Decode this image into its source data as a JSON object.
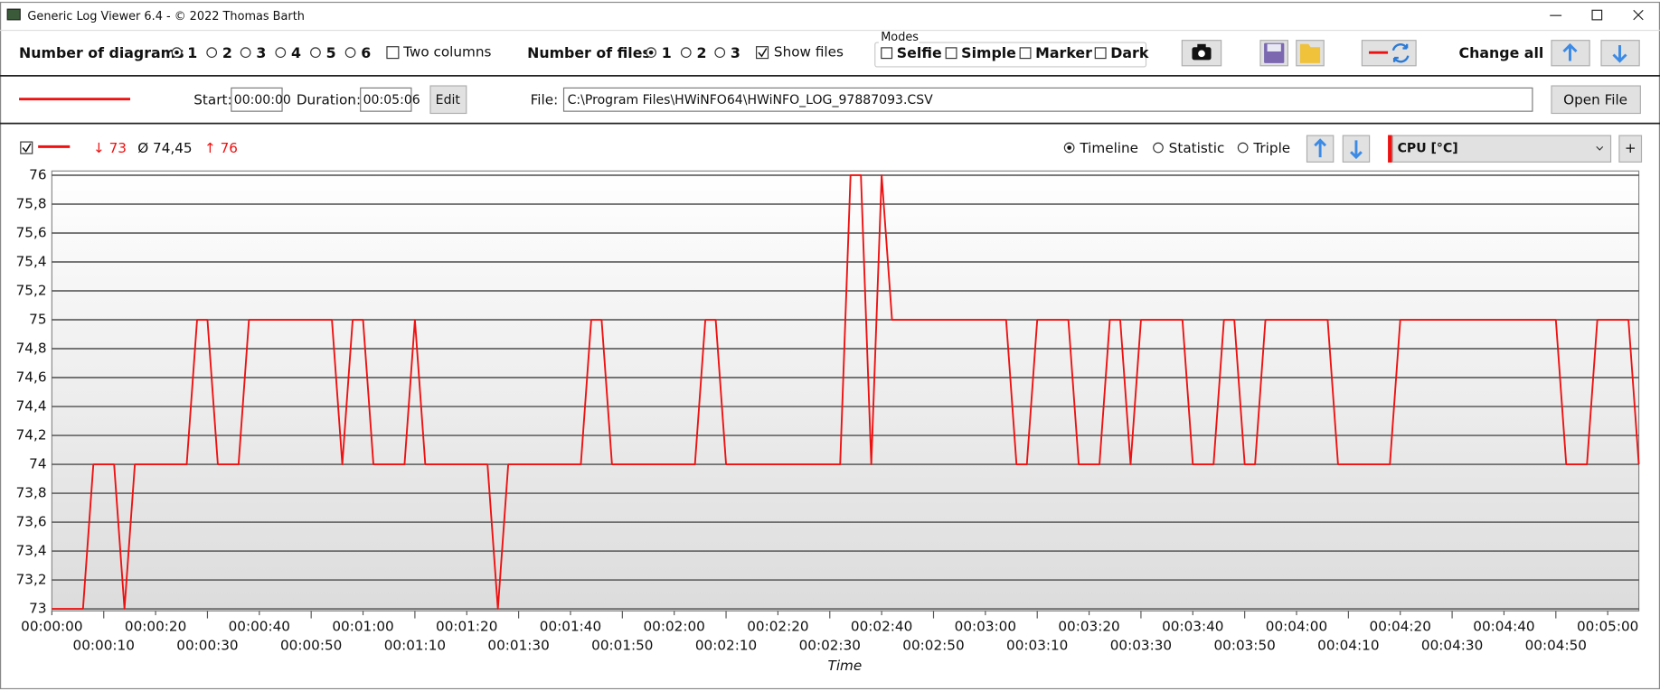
{
  "window": {
    "title": "Generic Log Viewer 6.4 - © 2022 Thomas Barth"
  },
  "toolbar": {
    "diagrams_label": "Number of diagrams",
    "diagram_options": [
      "1",
      "2",
      "3",
      "4",
      "5",
      "6"
    ],
    "two_columns": "Two columns",
    "files_label": "Number of files",
    "file_options": [
      "1",
      "2",
      "3"
    ],
    "show_files": "Show files",
    "modes_label": "Modes",
    "modes": [
      "Selfie",
      "Simple",
      "Marker",
      "Dark"
    ],
    "change_all": "Change all"
  },
  "file_bar": {
    "start_label": "Start:",
    "start": "00:00:00",
    "duration_label": "Duration:",
    "duration": "00:05:06",
    "edit": "Edit",
    "file_label": "File:",
    "file_path": "C:\\Program Files\\HWiNFO64\\HWiNFO_LOG_97887093.CSV",
    "open_file": "Open File"
  },
  "chart_header": {
    "min": "↓ 73",
    "avg": "Ø 74,45",
    "max": "↑ 76",
    "views": [
      "Timeline",
      "Statistic",
      "Triple"
    ],
    "add": "+"
  },
  "chart_data": {
    "type": "line",
    "x_label": "Time",
    "x": [
      0,
      6,
      8,
      12,
      14,
      16,
      26,
      28,
      30,
      32,
      36,
      38,
      54,
      56,
      58,
      60,
      62,
      68,
      70,
      72,
      84,
      86,
      88,
      102,
      104,
      106,
      108,
      124,
      126,
      128,
      130,
      152,
      154,
      156,
      158,
      160,
      162,
      184,
      186,
      188,
      190,
      196,
      198,
      202,
      204,
      206,
      208,
      210,
      218,
      220,
      224,
      226,
      228,
      230,
      232,
      234,
      246,
      248,
      258,
      260,
      290,
      292,
      296,
      298,
      304,
      306
    ],
    "series": [
      {
        "name": "CPU [°C]",
        "color": "#ee1111",
        "values": [
          73,
          73,
          74,
          74,
          73,
          74,
          74,
          75,
          75,
          74,
          74,
          75,
          75,
          74,
          75,
          75,
          74,
          74,
          75,
          74,
          74,
          73,
          74,
          74,
          75,
          75,
          74,
          74,
          75,
          75,
          74,
          74,
          76,
          76,
          74,
          76,
          75,
          75,
          74,
          74,
          75,
          75,
          74,
          74,
          75,
          75,
          74,
          75,
          75,
          74,
          74,
          75,
          75,
          74,
          74,
          75,
          75,
          74,
          74,
          75,
          75,
          74,
          74,
          75,
          75,
          74
        ]
      }
    ],
    "xlim": [
      0,
      306
    ],
    "xticks": [
      {
        "value": 0,
        "label": "00:00:00"
      },
      {
        "value": 10,
        "label": "00:00:10"
      },
      {
        "value": 20,
        "label": "00:00:20"
      },
      {
        "value": 30,
        "label": "00:00:30"
      },
      {
        "value": 40,
        "label": "00:00:40"
      },
      {
        "value": 50,
        "label": "00:00:50"
      },
      {
        "value": 60,
        "label": "00:01:00"
      },
      {
        "value": 70,
        "label": "00:01:10"
      },
      {
        "value": 80,
        "label": "00:01:20"
      },
      {
        "value": 90,
        "label": "00:01:30"
      },
      {
        "value": 100,
        "label": "00:01:40"
      },
      {
        "value": 110,
        "label": "00:01:50"
      },
      {
        "value": 120,
        "label": "00:02:00"
      },
      {
        "value": 130,
        "label": "00:02:10"
      },
      {
        "value": 140,
        "label": "00:02:20"
      },
      {
        "value": 150,
        "label": "00:02:30"
      },
      {
        "value": 160,
        "label": "00:02:40"
      },
      {
        "value": 170,
        "label": "00:02:50"
      },
      {
        "value": 180,
        "label": "00:03:00"
      },
      {
        "value": 190,
        "label": "00:03:10"
      },
      {
        "value": 200,
        "label": "00:03:20"
      },
      {
        "value": 210,
        "label": "00:03:30"
      },
      {
        "value": 220,
        "label": "00:03:40"
      },
      {
        "value": 230,
        "label": "00:03:50"
      },
      {
        "value": 240,
        "label": "00:04:00"
      },
      {
        "value": 250,
        "label": "00:04:10"
      },
      {
        "value": 260,
        "label": "00:04:20"
      },
      {
        "value": 270,
        "label": "00:04:30"
      },
      {
        "value": 280,
        "label": "00:04:40"
      },
      {
        "value": 290,
        "label": "00:04:50"
      },
      {
        "value": 300,
        "label": "00:05:00"
      }
    ],
    "ylim": [
      73,
      76
    ],
    "yticks": [
      73,
      {
        "value": 73.2,
        "label": "73,2"
      },
      {
        "value": 73.4,
        "label": "73,4"
      },
      {
        "value": 73.6,
        "label": "73,6"
      },
      {
        "value": 73.8,
        "label": "73,8"
      },
      74,
      {
        "value": 74.2,
        "label": "74,2"
      },
      {
        "value": 74.4,
        "label": "74,4"
      },
      {
        "value": 74.6,
        "label": "74,6"
      },
      {
        "value": 74.8,
        "label": "74,8"
      },
      75,
      {
        "value": 75.2,
        "label": "75,2"
      },
      {
        "value": 75.4,
        "label": "75,4"
      },
      {
        "value": 75.6,
        "label": "75,6"
      },
      {
        "value": 75.8,
        "label": "75,8"
      },
      76
    ],
    "grid": true
  }
}
